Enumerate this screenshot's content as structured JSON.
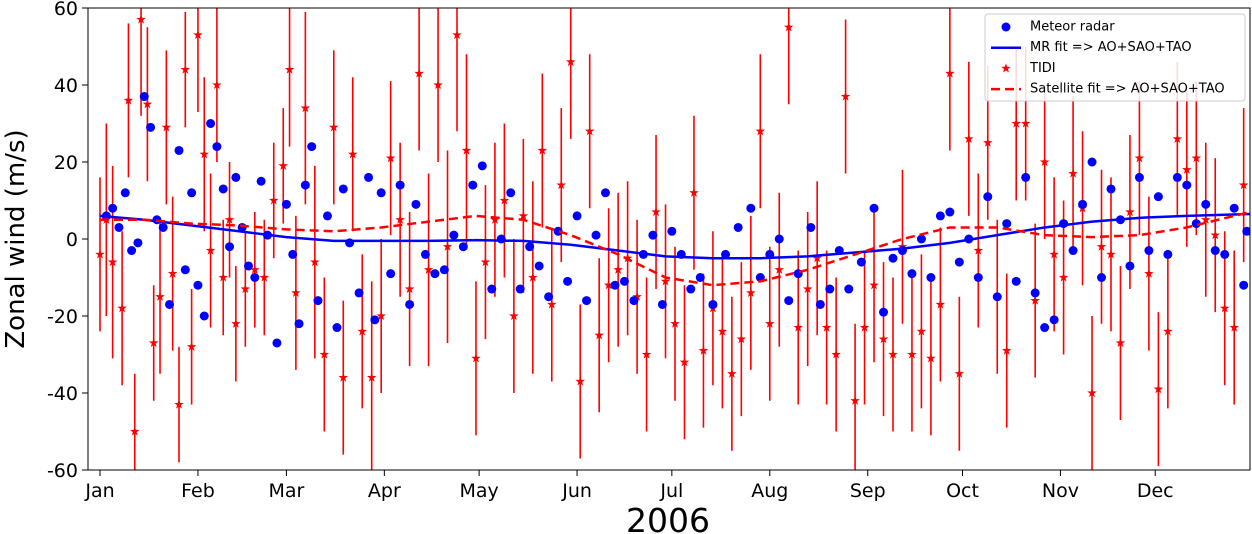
{
  "chart_data": {
    "type": "scatter",
    "xlabel": "2006",
    "ylabel": "Zonal wind (m/s)",
    "xlim": [
      -2.8,
      365
    ],
    "ylim": [
      -60,
      60
    ],
    "xticks": [
      {
        "value": 1,
        "label": "Jan"
      },
      {
        "value": 32,
        "label": "Feb"
      },
      {
        "value": 60,
        "label": "Mar"
      },
      {
        "value": 91,
        "label": "Apr"
      },
      {
        "value": 121,
        "label": "May"
      },
      {
        "value": 152,
        "label": "Jun"
      },
      {
        "value": 182,
        "label": "Jul"
      },
      {
        "value": 213,
        "label": "Aug"
      },
      {
        "value": 244,
        "label": "Sep"
      },
      {
        "value": 274,
        "label": "Oct"
      },
      {
        "value": 305,
        "label": "Nov"
      },
      {
        "value": 335,
        "label": "Dec"
      }
    ],
    "yticks": [
      -60,
      -40,
      -20,
      0,
      20,
      40,
      60
    ],
    "legend": "upper right",
    "series": [
      {
        "name": "Meteor radar",
        "style": "points",
        "color": "#0000ff",
        "x": [
          3,
          5,
          7,
          9,
          11,
          13,
          15,
          17,
          19,
          21,
          23,
          26,
          28,
          30,
          32,
          34,
          36,
          38,
          40,
          42,
          44,
          46,
          48,
          50,
          52,
          54,
          57,
          60,
          62,
          64,
          66,
          68,
          70,
          73,
          76,
          78,
          80,
          83,
          86,
          88,
          90,
          93,
          96,
          99,
          101,
          104,
          107,
          110,
          113,
          116,
          119,
          122,
          125,
          128,
          131,
          134,
          137,
          140,
          143,
          146,
          149,
          152,
          155,
          158,
          161,
          164,
          167,
          170,
          173,
          176,
          179,
          182,
          185,
          188,
          191,
          195,
          199,
          203,
          207,
          210,
          213,
          216,
          219,
          222,
          226,
          229,
          232,
          235,
          238,
          242,
          246,
          249,
          252,
          255,
          258,
          261,
          264,
          267,
          270,
          273,
          276,
          279,
          282,
          285,
          288,
          291,
          294,
          297,
          300,
          303,
          306,
          309,
          312,
          315,
          318,
          321,
          324,
          327,
          330,
          333,
          336,
          339,
          342,
          345,
          348,
          351,
          354,
          357,
          360,
          363,
          364
        ],
        "values": [
          6,
          8,
          3,
          12,
          -3,
          -1,
          37,
          29,
          5,
          3,
          -17,
          23,
          -8,
          12,
          -12,
          -20,
          30,
          24,
          13,
          -2,
          16,
          3,
          -7,
          -10,
          15,
          1,
          -27,
          9,
          -4,
          -22,
          14,
          24,
          -16,
          6,
          -23,
          13,
          -1,
          -14,
          16,
          -21,
          12,
          -9,
          14,
          -17,
          9,
          -4,
          -9,
          -8,
          1,
          -2,
          14,
          19,
          -13,
          0,
          12,
          -13,
          -2,
          -7,
          -15,
          2,
          -11,
          6,
          -16,
          1,
          12,
          -12,
          -11,
          -16,
          -4,
          1,
          -17,
          2,
          -4,
          -13,
          -10,
          -17,
          -4,
          3,
          8,
          -10,
          -4,
          0,
          -16,
          -9,
          3,
          -17,
          -13,
          -3,
          -13,
          -6,
          8,
          -19,
          -5,
          -3,
          -9,
          0,
          -10,
          6,
          7,
          -6,
          0,
          -10,
          11,
          -15,
          4,
          -11,
          16,
          -14,
          -23,
          -21,
          4,
          -3,
          9,
          20,
          -10,
          13,
          5,
          -7,
          16,
          -3,
          11,
          -4,
          16,
          14,
          4,
          9,
          -3,
          -4,
          8,
          -12,
          2
        ]
      },
      {
        "name": "MR fit => AO+SAO+TAO",
        "style": "solid",
        "color": "#0000ff",
        "x": [
          1,
          15,
          30,
          45,
          60,
          75,
          90,
          105,
          120,
          135,
          150,
          165,
          180,
          195,
          210,
          225,
          240,
          255,
          270,
          285,
          300,
          315,
          330,
          345,
          365
        ],
        "values": [
          6,
          5,
          3.5,
          2,
          0.5,
          -0.5,
          -0.5,
          -0.5,
          -0.3,
          -0.5,
          -1.5,
          -3,
          -4.5,
          -5,
          -5,
          -4.5,
          -3.5,
          -2.5,
          -1,
          1,
          3,
          4.5,
          5.5,
          6,
          6.5
        ]
      },
      {
        "name": "TIDI",
        "style": "stars",
        "color": "#ff0000",
        "x": [
          1,
          3,
          5,
          8,
          10,
          12,
          14,
          16,
          18,
          20,
          22,
          24,
          26,
          28,
          30,
          32,
          34,
          36,
          38,
          40,
          42,
          44,
          47,
          50,
          53,
          56,
          59,
          61,
          63,
          66,
          69,
          72,
          75,
          78,
          81,
          84,
          87,
          90,
          93,
          96,
          99,
          102,
          105,
          108,
          111,
          114,
          117,
          120,
          123,
          126,
          129,
          132,
          135,
          138,
          141,
          144,
          147,
          150,
          153,
          156,
          159,
          162,
          165,
          168,
          171,
          174,
          177,
          180,
          183,
          186,
          189,
          192,
          195,
          198,
          201,
          204,
          207,
          210,
          213,
          216,
          219,
          222,
          225,
          228,
          231,
          234,
          237,
          240,
          243,
          246,
          249,
          252,
          255,
          258,
          261,
          264,
          267,
          270,
          273,
          276,
          279,
          282,
          285,
          288,
          291,
          294,
          297,
          300,
          303,
          306,
          309,
          312,
          315,
          318,
          321,
          324,
          327,
          330,
          333,
          336,
          339,
          342,
          345,
          348,
          351,
          354,
          357,
          360,
          363
        ],
        "values": [
          -4,
          5,
          -6,
          -18,
          36,
          -50,
          57,
          35,
          -27,
          -15,
          29,
          -9,
          -43,
          44,
          -28,
          53,
          22,
          -3,
          40,
          -10,
          5,
          -22,
          -13,
          -8,
          -10,
          10,
          19,
          44,
          -14,
          34,
          -6,
          -30,
          29,
          -36,
          22,
          -24,
          -36,
          -20,
          21,
          5,
          -13,
          43,
          -8,
          40,
          -2,
          53,
          23,
          -31,
          -6,
          5,
          10,
          -20,
          6,
          -10,
          23,
          -17,
          14,
          46,
          -37,
          28,
          -25,
          -12,
          -8,
          -5,
          -15,
          -30,
          7,
          -11,
          -22,
          -32,
          12,
          -29,
          -18,
          -24,
          -35,
          -26,
          -14,
          28,
          -22,
          -8,
          55,
          -23,
          -13,
          -5,
          -23,
          -30,
          37,
          -42,
          -23,
          -12,
          -26,
          -30,
          -2,
          -30,
          -24,
          -31,
          -17,
          43,
          -35,
          26,
          -3,
          25,
          -15,
          -29,
          30,
          30,
          -16,
          20,
          -4,
          -10,
          17,
          8,
          -40,
          -2,
          -4,
          -27,
          7,
          21,
          -9,
          -39,
          -24,
          26,
          18,
          21,
          5,
          1,
          -18,
          -23,
          14
        ],
        "errors": [
          20,
          25,
          25,
          20,
          20,
          15,
          25,
          20,
          15,
          20,
          20,
          20,
          15,
          15,
          15,
          20,
          20,
          20,
          20,
          15,
          15,
          15,
          15,
          15,
          15,
          15,
          15,
          20,
          20,
          25,
          25,
          20,
          20,
          20,
          20,
          20,
          25,
          20,
          20,
          20,
          20,
          20,
          25,
          20,
          25,
          25,
          25,
          20,
          20,
          20,
          20,
          20,
          20,
          25,
          20,
          20,
          20,
          20,
          20,
          20,
          20,
          20,
          20,
          20,
          20,
          20,
          20,
          20,
          20,
          20,
          20,
          20,
          20,
          20,
          20,
          20,
          20,
          20,
          20,
          20,
          20,
          20,
          20,
          20,
          20,
          20,
          20,
          20,
          20,
          20,
          20,
          20,
          20,
          20,
          20,
          20,
          20,
          20,
          20,
          20,
          20,
          20,
          20,
          20,
          20,
          20,
          20,
          20,
          20,
          20,
          20,
          20,
          20,
          20,
          20,
          20,
          20,
          20,
          20,
          20,
          20,
          20,
          20,
          20,
          20,
          20,
          20,
          20,
          20
        ]
      },
      {
        "name": "Satellite fit => AO+SAO+TAO",
        "style": "dashed",
        "color": "#ff0000",
        "x": [
          1,
          15,
          30,
          45,
          60,
          75,
          90,
          105,
          120,
          135,
          150,
          165,
          180,
          195,
          210,
          225,
          240,
          255,
          270,
          285,
          300,
          315,
          330,
          345,
          365
        ],
        "values": [
          5,
          5,
          4,
          3.5,
          2.5,
          2,
          3,
          4.5,
          6,
          5,
          1,
          -4,
          -10,
          -12,
          -11,
          -8,
          -4,
          0,
          3,
          3,
          1,
          0.5,
          1,
          3,
          7
        ]
      }
    ]
  }
}
